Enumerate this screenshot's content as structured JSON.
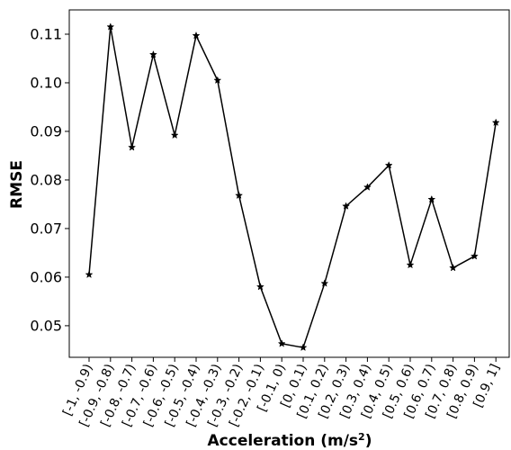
{
  "chart_data": {
    "type": "line",
    "title": "",
    "xlabel": "Acceleration (m/s",
    "xlabel_sup": "2",
    "xlabel_suffix": ")",
    "ylabel": "RMSE",
    "categories": [
      "[-1, -0.9)",
      "[-0.9, -0.8)",
      "[-0.8, -0.7)",
      "[-0.7, -0.6)",
      "[-0.6, -0.5)",
      "[-0.5, -0.4)",
      "[-0.4, -0.3)",
      "[-0.3, -0.2)",
      "[-0.2, -0.1)",
      "[-0.1, 0)",
      "[0, 0.1)",
      "[0.1, 0.2)",
      "[0.2, 0.3)",
      "[0.3, 0.4)",
      "[0.4, 0.5)",
      "[0.5, 0.6)",
      "[0.6, 0.7)",
      "[0.7, 0.8)",
      "[0.8, 0.9)",
      "[0.9, 1]"
    ],
    "series": [
      {
        "values": [
          0.0605,
          0.1115,
          0.0867,
          0.1058,
          0.0892,
          0.1097,
          0.1005,
          0.0768,
          0.058,
          0.0463,
          0.0455,
          0.0587,
          0.0746,
          0.0785,
          0.083,
          0.0625,
          0.076,
          0.0619,
          0.0643,
          0.0918
        ],
        "marker": "star",
        "color": "#000000"
      }
    ],
    "ylim": [
      0.0435,
      0.115
    ],
    "yticks": [
      "0.05",
      "0.06",
      "0.07",
      "0.08",
      "0.09",
      "0.10",
      "0.11"
    ],
    "grid": false,
    "legend": "none"
  }
}
